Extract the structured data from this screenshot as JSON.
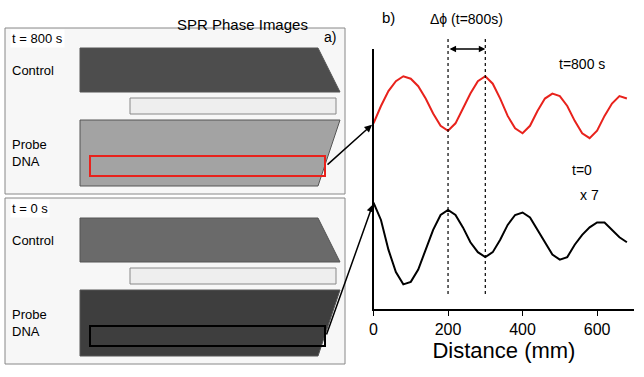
{
  "chart_data": {
    "type": "line",
    "label": "b)",
    "xlabel": "Distance (mm)",
    "xlim": [
      0,
      700
    ],
    "xticks": [
      0,
      200,
      400,
      600
    ],
    "ylim": [
      0,
      10.5
    ],
    "yticks": [],
    "tick_labels": "x",
    "grid": false,
    "x": [
      0,
      20,
      40,
      60,
      80,
      100,
      120,
      140,
      160,
      180,
      200,
      220,
      240,
      260,
      280,
      300,
      320,
      340,
      360,
      380,
      400,
      420,
      440,
      460,
      480,
      500,
      520,
      540,
      560,
      580,
      600,
      620,
      640,
      660,
      680
    ],
    "series": [
      {
        "name": "t=800 s",
        "color": "#e8221c",
        "values": [
          7.5,
          8.2,
          8.8,
          9.2,
          9.4,
          9.3,
          9.0,
          8.5,
          7.9,
          7.4,
          7.2,
          7.5,
          8.1,
          8.7,
          9.2,
          9.4,
          9.1,
          8.5,
          7.8,
          7.3,
          7.1,
          7.4,
          8.0,
          8.5,
          8.7,
          8.6,
          8.2,
          7.6,
          7.1,
          6.9,
          7.2,
          7.8,
          8.3,
          8.6,
          8.5
        ]
      },
      {
        "name": "t=0",
        "color": "#000000",
        "annotation": "x 7",
        "values": [
          4.3,
          3.6,
          2.4,
          1.5,
          1.0,
          1.1,
          1.6,
          2.4,
          3.2,
          3.8,
          4.0,
          3.8,
          3.3,
          2.7,
          2.3,
          2.1,
          2.3,
          2.8,
          3.4,
          3.8,
          3.9,
          3.7,
          3.2,
          2.7,
          2.2,
          2.0,
          2.1,
          2.6,
          3.0,
          3.3,
          3.5,
          3.5,
          3.2,
          2.9,
          2.7
        ]
      }
    ],
    "delta_phi": {
      "label": "Δϕ (t=800s)",
      "from": 200,
      "to": 300
    }
  },
  "panel_a": {
    "label": "a)",
    "title": "SPR Phase Images",
    "frames": [
      {
        "time": "t = 800 s",
        "control": "Control",
        "probe": "Probe DNA",
        "box_color": "#e8221c"
      },
      {
        "time": "t = 0 s",
        "control": "Control",
        "probe": "Probe DNA",
        "box_color": "#000000"
      }
    ]
  }
}
